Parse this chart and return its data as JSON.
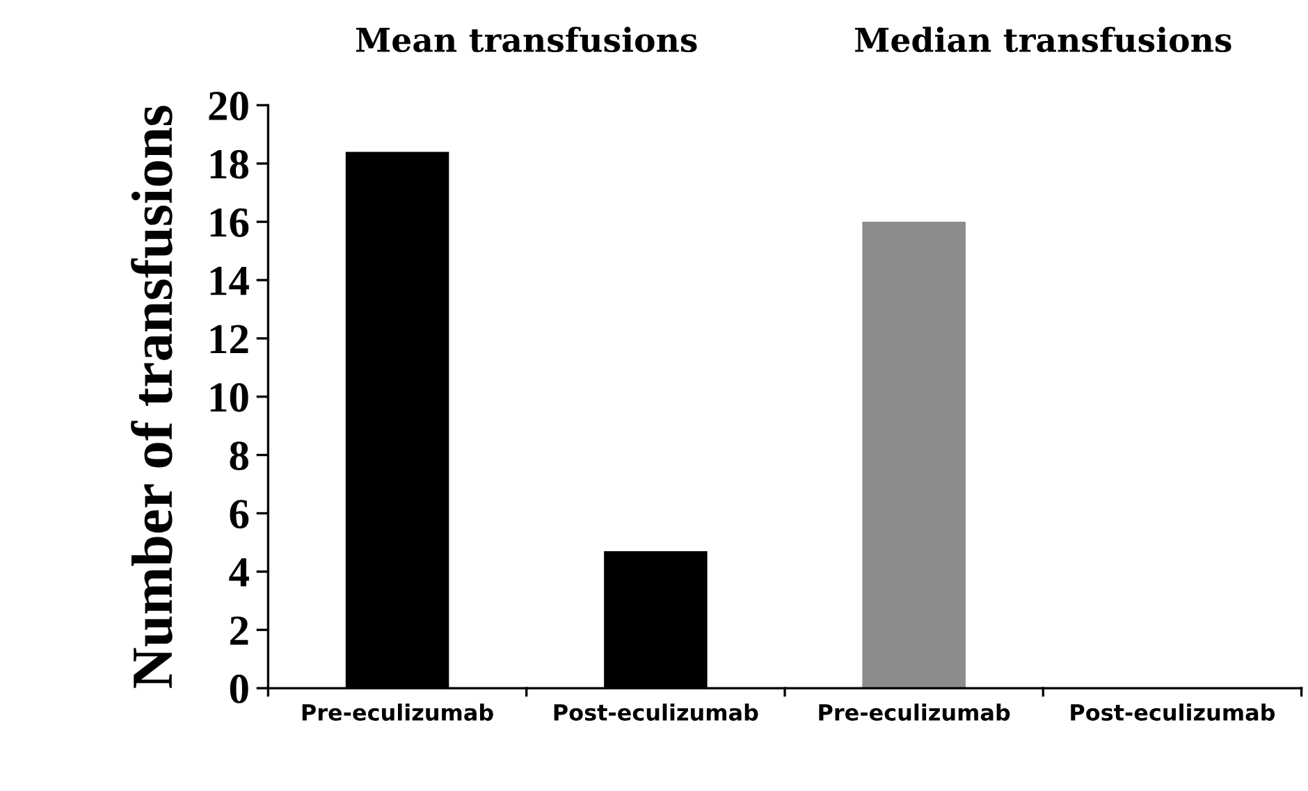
{
  "chart_data": {
    "type": "bar",
    "ylabel": "Number of transfusions",
    "annotations": [
      "Mean transfusions",
      "Median transfusions"
    ],
    "categories": [
      "Pre-eculizumab",
      "Post-eculizumab",
      "Pre-eculizumab",
      "Post-eculizumab"
    ],
    "values": [
      18.4,
      4.7,
      16,
      0
    ],
    "colors": [
      "#000000",
      "#000000",
      "#8c8c8c",
      "#8c8c8c"
    ],
    "ylim": [
      0,
      20
    ],
    "yticks": [
      0,
      2,
      4,
      6,
      8,
      10,
      12,
      14,
      16,
      18,
      20
    ],
    "grid": false,
    "legend": false
  }
}
